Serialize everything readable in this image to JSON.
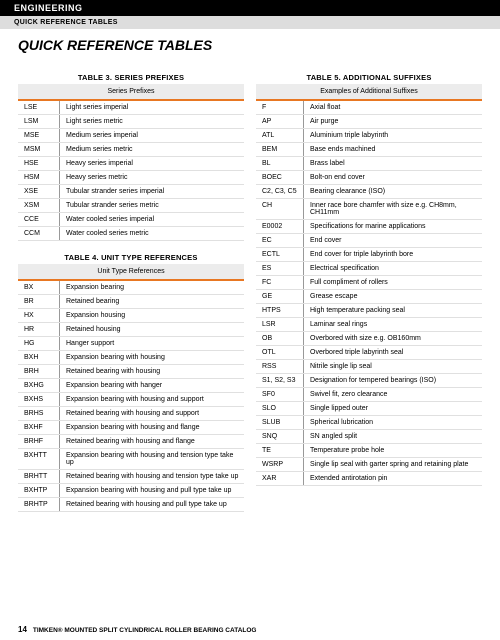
{
  "header": {
    "section": "ENGINEERING",
    "subsection": "QUICK REFERENCE TABLES"
  },
  "page_title": "QUICK REFERENCE TABLES",
  "colors": {
    "accent": "#e87722",
    "header_bg": "#000000",
    "sub_bg": "#dddddd",
    "row_border": "#e0e0e0"
  },
  "table3": {
    "title": "TABLE 3. SERIES PREFIXES",
    "head": "Series Prefixes",
    "rows": [
      [
        "LSE",
        "Light series imperial"
      ],
      [
        "LSM",
        "Light series metric"
      ],
      [
        "MSE",
        "Medium series imperial"
      ],
      [
        "MSM",
        "Medium series metric"
      ],
      [
        "HSE",
        "Heavy series imperial"
      ],
      [
        "HSM",
        "Heavy series metric"
      ],
      [
        "XSE",
        "Tubular strander series imperial"
      ],
      [
        "XSM",
        "Tubular strander series metric"
      ],
      [
        "CCE",
        "Water cooled series imperial"
      ],
      [
        "CCM",
        "Water cooled series metric"
      ]
    ]
  },
  "table4": {
    "title": "TABLE 4. UNIT TYPE REFERENCES",
    "head": "Unit Type References",
    "rows": [
      [
        "BX",
        "Expansion bearing"
      ],
      [
        "BR",
        "Retained bearing"
      ],
      [
        "HX",
        "Expansion housing"
      ],
      [
        "HR",
        "Retained housing"
      ],
      [
        "HG",
        "Hanger support"
      ],
      [
        "BXH",
        "Expansion bearing with housing"
      ],
      [
        "BRH",
        "Retained bearing with housing"
      ],
      [
        "BXHG",
        "Expansion bearing with hanger"
      ],
      [
        "BXHS",
        "Expansion bearing with housing and support"
      ],
      [
        "BRHS",
        "Retained bearing with housing and support"
      ],
      [
        "BXHF",
        "Expansion bearing with housing and flange"
      ],
      [
        "BRHF",
        "Retained bearing with housing and flange"
      ],
      [
        "BXHTT",
        "Expansion bearing with housing and tension type take up"
      ],
      [
        "BRHTT",
        "Retained bearing with housing and tension type take up"
      ],
      [
        "BXHTP",
        "Expansion bearing with housing and pull type take up"
      ],
      [
        "BRHTP",
        "Retained bearing with housing and pull type take up"
      ]
    ]
  },
  "table5": {
    "title": "TABLE 5. ADDITIONAL SUFFIXES",
    "head": "Examples of Additional Suffixes",
    "rows": [
      [
        "F",
        "Axial float"
      ],
      [
        "AP",
        "Air purge"
      ],
      [
        "ATL",
        "Aluminium triple labyrinth"
      ],
      [
        "BEM",
        "Base ends machined"
      ],
      [
        "BL",
        "Brass label"
      ],
      [
        "BOEC",
        "Bolt-on end cover"
      ],
      [
        "C2, C3, C5",
        "Bearing clearance (ISO)"
      ],
      [
        "CH",
        "Inner race bore chamfer with size e.g. CH8mm, CH11mm"
      ],
      [
        "E0002",
        "Specifications for marine applications"
      ],
      [
        "EC",
        "End cover"
      ],
      [
        "ECTL",
        "End cover for triple labyrinth bore"
      ],
      [
        "ES",
        "Electrical specification"
      ],
      [
        "FC",
        "Full compliment of rollers"
      ],
      [
        "GE",
        "Grease escape"
      ],
      [
        "HTPS",
        "High temperature packing seal"
      ],
      [
        "LSR",
        "Laminar seal rings"
      ],
      [
        "OB",
        "Overbored with size e.g. OB160mm"
      ],
      [
        "OTL",
        "Overbored triple labyrinth seal"
      ],
      [
        "RSS",
        "Nitrile single lip seal"
      ],
      [
        "S1, S2, S3",
        "Designation for tempered bearings (ISO)"
      ],
      [
        "SF0",
        "Swivel fit, zero clearance"
      ],
      [
        "SLO",
        "Single lipped outer"
      ],
      [
        "SLUB",
        "Spherical lubrication"
      ],
      [
        "SNQ",
        "SN angled split"
      ],
      [
        "TE",
        "Temperature probe hole"
      ],
      [
        "WSRP",
        "Single lip seal with garter spring and retaining plate"
      ],
      [
        "XAR",
        "Extended antirotation pin"
      ]
    ]
  },
  "footer": {
    "page": "14",
    "text": "TIMKEN® MOUNTED SPLIT CYLINDRICAL ROLLER BEARING CATALOG"
  }
}
